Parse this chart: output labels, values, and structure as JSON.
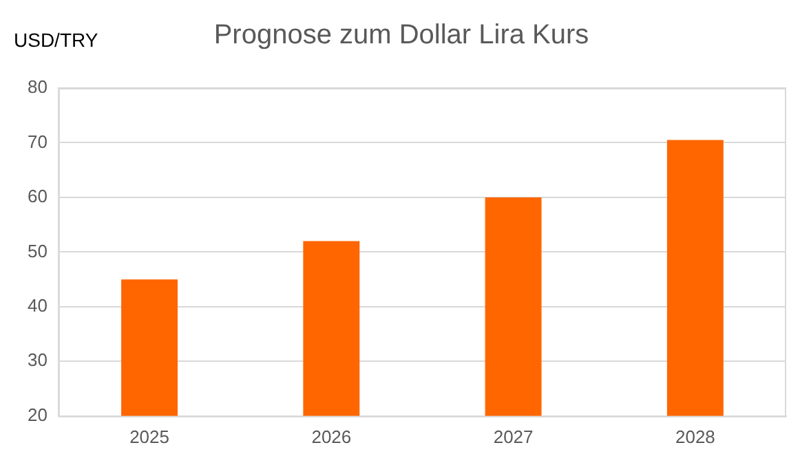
{
  "chart_data": {
    "type": "bar",
    "title": "Prognose zum Dollar Lira Kurs",
    "ylabel": "USD/TRY",
    "categories": [
      "2025",
      "2026",
      "2027",
      "2028"
    ],
    "values": [
      45,
      52,
      60,
      70.5
    ],
    "color": "#ff6600",
    "ylim": [
      20,
      80
    ],
    "yticks": [
      20,
      30,
      40,
      50,
      60,
      70,
      80
    ],
    "grid": "y",
    "legend": false
  }
}
